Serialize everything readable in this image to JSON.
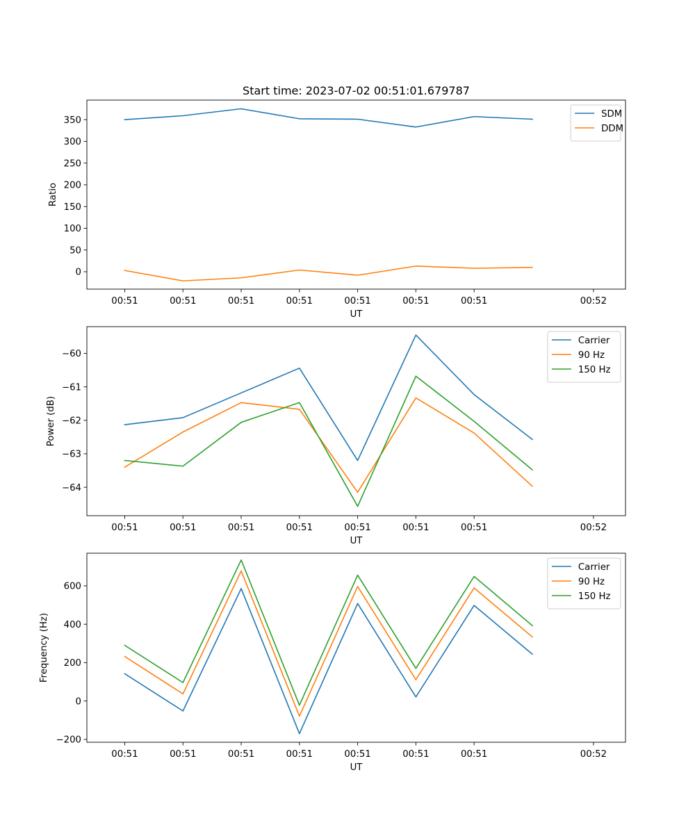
{
  "figure_title": "Start time: 2023-07-02 00:51:01.679787",
  "chart_data": [
    {
      "type": "line",
      "title": "Start time: 2023-07-02 00:51:01.679787",
      "xlabel": "UT",
      "ylabel": "Ratio",
      "x_tick_labels": [
        "00:51",
        "00:51",
        "00:51",
        "00:51",
        "00:51",
        "00:51",
        "00:51"
      ],
      "x_last_tick_label": "00:52",
      "x": [
        1,
        2,
        3,
        4,
        5,
        6,
        7,
        8
      ],
      "xlim": [
        0.35,
        9.6
      ],
      "ylim": [
        -40,
        395
      ],
      "yticks": [
        0,
        50,
        100,
        150,
        200,
        250,
        300,
        350
      ],
      "legend": "top-right",
      "series": [
        {
          "name": "SDM",
          "color": "#1f77b4",
          "values": [
            350,
            359,
            375,
            352,
            351,
            333,
            357,
            351
          ]
        },
        {
          "name": "DDM",
          "color": "#ff7f0e",
          "values": [
            3,
            -21,
            -14,
            4,
            -8,
            13,
            8,
            10
          ]
        }
      ]
    },
    {
      "type": "line",
      "xlabel": "UT",
      "ylabel": "Power (dB)",
      "x_tick_labels": [
        "00:51",
        "00:51",
        "00:51",
        "00:51",
        "00:51",
        "00:51",
        "00:51"
      ],
      "x_last_tick_label": "00:52",
      "x": [
        1,
        2,
        3,
        4,
        5,
        6,
        7,
        8
      ],
      "xlim": [
        0.35,
        9.6
      ],
      "ylim": [
        -64.85,
        -59.2
      ],
      "yticks": [
        -64,
        -63,
        -62,
        -61,
        -60
      ],
      "legend": "top-right",
      "series": [
        {
          "name": "Carrier",
          "color": "#1f77b4",
          "values": [
            -62.13,
            -61.92,
            -61.18,
            -60.44,
            -63.2,
            -59.45,
            -61.23,
            -62.57
          ]
        },
        {
          "name": "90 Hz",
          "color": "#ff7f0e",
          "values": [
            -63.4,
            -62.35,
            -61.47,
            -61.67,
            -64.15,
            -61.33,
            -62.38,
            -63.97
          ]
        },
        {
          "name": "150 Hz",
          "color": "#2ca02c",
          "values": [
            -63.2,
            -63.37,
            -62.06,
            -61.47,
            -64.57,
            -60.68,
            -62.03,
            -63.48
          ]
        }
      ]
    },
    {
      "type": "line",
      "xlabel": "UT",
      "ylabel": "Frequency (Hz)",
      "x_tick_labels": [
        "00:51",
        "00:51",
        "00:51",
        "00:51",
        "00:51",
        "00:51",
        "00:51"
      ],
      "x_last_tick_label": "00:52",
      "x": [
        1,
        2,
        3,
        4,
        5,
        6,
        7,
        8
      ],
      "xlim": [
        0.35,
        9.6
      ],
      "ylim": [
        -215,
        770
      ],
      "yticks": [
        -200,
        0,
        200,
        400,
        600
      ],
      "legend": "top-right",
      "series": [
        {
          "name": "Carrier",
          "color": "#1f77b4",
          "values": [
            142,
            -52,
            586,
            -170,
            508,
            21,
            498,
            244
          ]
        },
        {
          "name": "90 Hz",
          "color": "#ff7f0e",
          "values": [
            232,
            37,
            678,
            -79,
            597,
            111,
            589,
            334
          ]
        },
        {
          "name": "150 Hz",
          "color": "#2ca02c",
          "values": [
            290,
            96,
            735,
            -22,
            656,
            170,
            649,
            393
          ]
        }
      ]
    }
  ]
}
